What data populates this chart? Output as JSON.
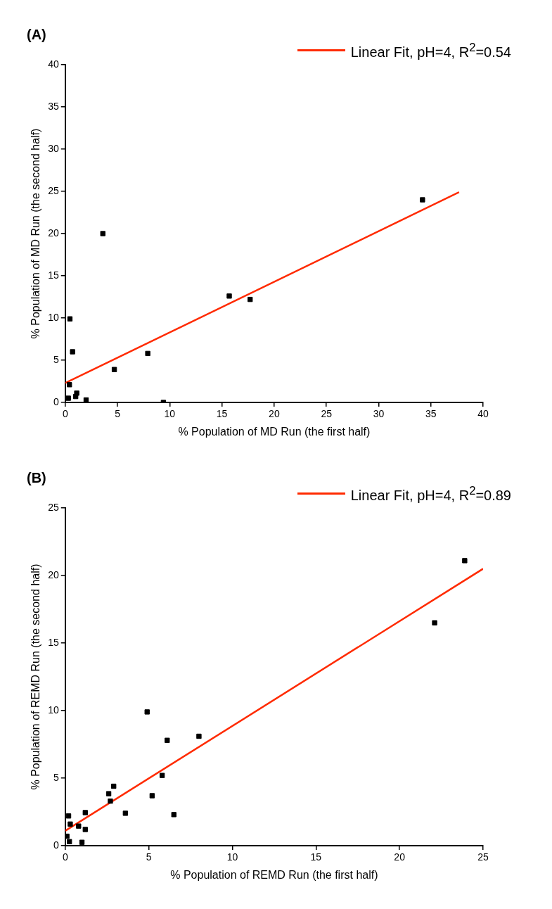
{
  "chart_data": [
    {
      "type": "scatter",
      "title": "(A)",
      "xlabel": "% Population of MD Run (the first half)",
      "ylabel": "% Population of MD Run (the second half)",
      "xlim": [
        0,
        40
      ],
      "ylim": [
        0,
        40
      ],
      "xticks": [
        0,
        5,
        10,
        15,
        20,
        25,
        30,
        35,
        40
      ],
      "yticks": [
        0,
        5,
        10,
        15,
        20,
        25,
        30,
        35,
        40
      ],
      "grid": false,
      "legend": "top right",
      "series": [
        {
          "marker": "square",
          "color": "#000000",
          "x": [
            3.6,
            0.45,
            0.7,
            0.4,
            0.3,
            1.0,
            1.1,
            2.0,
            4.7,
            7.9,
            9.4,
            15.7,
            17.7,
            34.2
          ],
          "values": [
            20.0,
            9.9,
            6.0,
            2.1,
            0.5,
            0.7,
            1.1,
            0.3,
            3.9,
            5.8,
            0.0,
            12.6,
            12.2,
            24.0
          ]
        },
        {
          "type": "line",
          "marker": "none",
          "name": "Linear Fit, pH=4, R$^{2}$=0.54",
          "color": "#ff2a00",
          "x": [
            0,
            37.7
          ],
          "values": [
            2.3,
            24.9
          ]
        }
      ]
    },
    {
      "type": "scatter",
      "title": "(B)",
      "xlabel": "% Population of REMD Run (the first half)",
      "ylabel": "% Population of REMD Run (the second half)",
      "xlim": [
        0,
        25
      ],
      "ylim": [
        0,
        25
      ],
      "xticks": [
        0,
        5,
        10,
        15,
        20,
        25
      ],
      "yticks": [
        0,
        5,
        10,
        15,
        20,
        25
      ],
      "grid": false,
      "legend": "top right",
      "series": [
        {
          "marker": "square",
          "color": "#000000",
          "x": [
            4.9,
            6.1,
            8.0,
            5.8,
            5.2,
            6.5,
            2.9,
            2.6,
            2.7,
            3.6,
            1.2,
            1.2,
            0.2,
            0.3,
            0.8,
            0.1,
            0.25,
            1.0,
            23.9,
            22.1
          ],
          "values": [
            9.9,
            7.8,
            8.1,
            5.2,
            3.7,
            2.3,
            4.4,
            3.85,
            3.3,
            2.4,
            2.45,
            1.2,
            2.2,
            1.6,
            1.45,
            0.7,
            0.3,
            0.25,
            21.1,
            16.5
          ]
        },
        {
          "type": "line",
          "marker": "none",
          "name": "Linear Fit, pH=4, R$^{2}$=0.89",
          "color": "#ff2a00",
          "x": [
            0,
            25
          ],
          "values": [
            1.1,
            20.5
          ]
        }
      ]
    }
  ]
}
